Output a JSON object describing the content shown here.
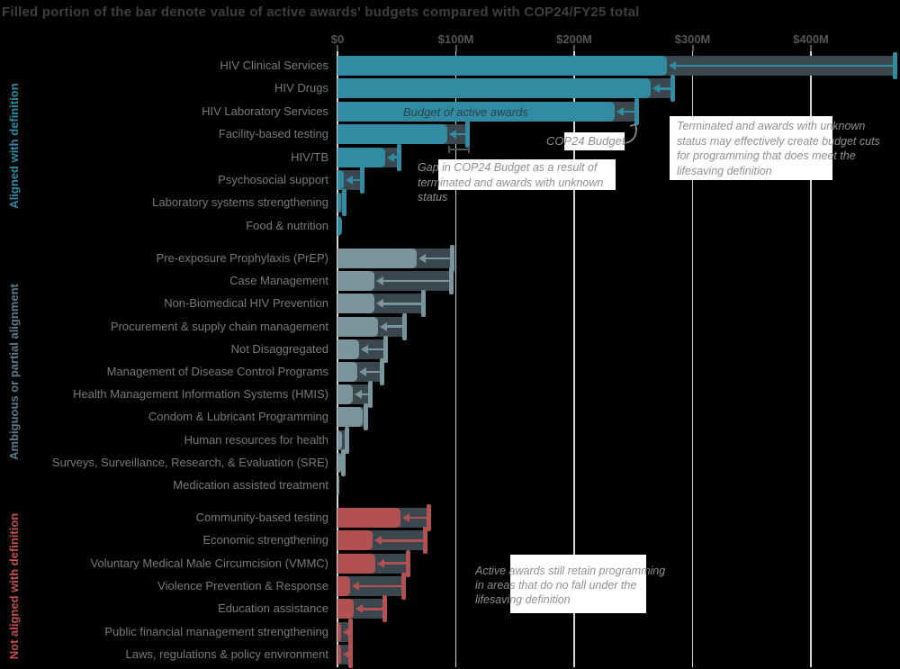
{
  "title": "Filled portion of the bar denote value of active awards' budgets compared with COP24/FY25 total",
  "chart_data": {
    "type": "bar",
    "orientation": "horizontal",
    "unit": "USD millions",
    "xlabel": "",
    "ylabel": "",
    "xlim_m": [
      0,
      475
    ],
    "grid": true,
    "axis": {
      "ticks": [
        {
          "label": "$0",
          "value_m": 0
        },
        {
          "label": "$100M",
          "value_m": 100
        },
        {
          "label": "$200M",
          "value_m": 200
        },
        {
          "label": "$300M",
          "value_m": 300
        },
        {
          "label": "$400M",
          "value_m": 400
        }
      ]
    },
    "series_legend": [
      {
        "name": "Budget of active awards",
        "style": "filled bar"
      },
      {
        "name": "COP24 Budget",
        "style": "whisker cap with arrow"
      },
      {
        "name": "Gap (terminated / unknown status awards)",
        "style": "dark bar segment"
      }
    ],
    "groups": [
      {
        "name": "Aligned with definition",
        "color": "#308ba3",
        "label_color": "#2e8ba3",
        "bars": [
          {
            "label": "HIV Clinical Services",
            "active_m": 278,
            "cop24_m": 471
          },
          {
            "label": "HIV Drugs",
            "active_m": 265,
            "cop24_m": 283
          },
          {
            "label": "HIV Laboratory Services",
            "active_m": 234,
            "cop24_m": 253
          },
          {
            "label": "Facility-based testing",
            "active_m": 93,
            "cop24_m": 110
          },
          {
            "label": "HIV/TB",
            "active_m": 40,
            "cop24_m": 52
          },
          {
            "label": "Psychosocial support",
            "active_m": 5,
            "cop24_m": 21
          },
          {
            "label": "Laboratory systems strengthening",
            "active_m": 3,
            "cop24_m": 6
          },
          {
            "label": "Food & nutrition",
            "active_m": 4,
            "cop24_m": 4
          }
        ]
      },
      {
        "name": "Ambiguous or partial alignment",
        "color": "#7b959c",
        "label_color": "#5f7b85",
        "bars": [
          {
            "label": "Pre-exposure Prophylaxis (PrEP)",
            "active_m": 67,
            "cop24_m": 97
          },
          {
            "label": "Case Management",
            "active_m": 31,
            "cop24_m": 96
          },
          {
            "label": "Non-Biomedical HIV Prevention",
            "active_m": 31,
            "cop24_m": 73
          },
          {
            "label": "Procurement & supply chain management",
            "active_m": 34,
            "cop24_m": 57
          },
          {
            "label": "Not Disaggregated",
            "active_m": 18,
            "cop24_m": 41
          },
          {
            "label": "Management of Disease Control Programs",
            "active_m": 17,
            "cop24_m": 38
          },
          {
            "label": "Health Management Information Systems (HMIS)",
            "active_m": 13,
            "cop24_m": 28
          },
          {
            "label": "Condom & Lubricant Programming",
            "active_m": 21,
            "cop24_m": 24
          },
          {
            "label": "Human resources for health",
            "active_m": 4,
            "cop24_m": 8
          },
          {
            "label": "Surveys, Surveillance, Research, & Evaluation (SRE)",
            "active_m": 3,
            "cop24_m": 5
          },
          {
            "label": "Medication assisted treatment",
            "active_m": 1.5,
            "cop24_m": 1.5
          }
        ]
      },
      {
        "name": "Not aligned with definition",
        "color": "#b35152",
        "label_color": "#c0504f",
        "bars": [
          {
            "label": "Community-based testing",
            "active_m": 53,
            "cop24_m": 77
          },
          {
            "label": "Economic strengthening",
            "active_m": 30,
            "cop24_m": 74
          },
          {
            "label": "Voluntary Medical Male Circumcision (VMMC)",
            "active_m": 32,
            "cop24_m": 60
          },
          {
            "label": "Violence Prevention & Response",
            "active_m": 11,
            "cop24_m": 56
          },
          {
            "label": "Education assistance",
            "active_m": 14,
            "cop24_m": 40
          },
          {
            "label": "Public financial management strengthening",
            "active_m": 3,
            "cop24_m": 11
          },
          {
            "label": "Laws, regulations & policy environment",
            "active_m": 3,
            "cop24_m": 11
          }
        ]
      }
    ]
  },
  "annotations": {
    "budget_active": "Budget of active awards",
    "cop24": "COP24 Budget",
    "gap": "Gap in COP24 Budget as a result of\nterminated and awards with unknown\nstatus",
    "terminated": "Terminated and awards with unknown\nstatus may effectively create budget cuts\nfor programming that does meet the\nlifesaving definition",
    "active_retain": "Active awards still retain programming\nin areas that do no fall under the\nlifesaving definition"
  },
  "colors": {
    "background": "#000000",
    "title_text": "#3f3f3f",
    "category_text": "#7a7a7a",
    "gridline": "#d6d6d6",
    "gap_bar": "#3a474e",
    "annotation_text": "#8f8f8f",
    "highlight_box": "#ffffff"
  }
}
